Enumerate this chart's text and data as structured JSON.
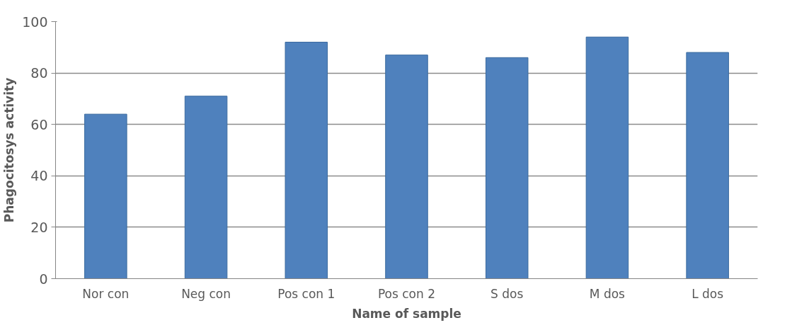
{
  "chart_data": {
    "type": "bar",
    "xlabel": "Name of sample",
    "ylabel": "Phagocitosys activity",
    "categories": [
      "Nor con",
      "Neg con",
      "Pos con 1",
      "Pos con 2",
      "S dos",
      "M dos",
      "L dos"
    ],
    "values": [
      64,
      71,
      92,
      87,
      86,
      94,
      88
    ],
    "color": "#4f81bd",
    "ylim": [
      0,
      100
    ],
    "yticks": [
      0,
      20,
      40,
      60,
      80,
      100
    ],
    "grid": "y"
  }
}
